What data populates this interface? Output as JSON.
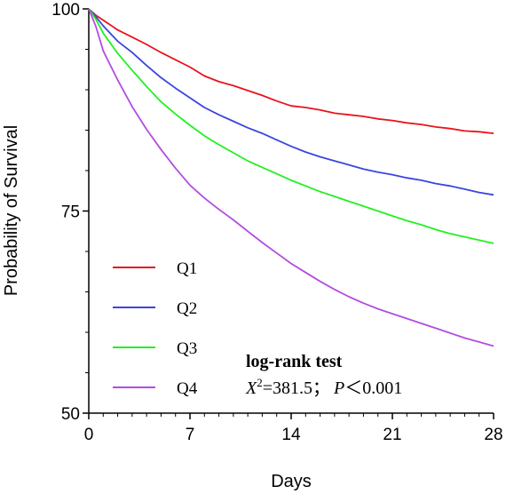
{
  "chart_data": {
    "type": "line",
    "title": "",
    "xlabel": "Days",
    "ylabel": "Probability of Survival",
    "xlim": [
      0,
      28
    ],
    "ylim": [
      50,
      100
    ],
    "xticks": [
      0,
      7,
      14,
      21,
      28
    ],
    "yticks": [
      50,
      75,
      100
    ],
    "grid": false,
    "legend_position": "bottom-left",
    "series": [
      {
        "name": "Q1",
        "color": "#e8141c",
        "x": [
          0,
          0.5,
          1,
          2,
          3,
          4,
          5,
          6,
          7,
          8,
          9,
          10,
          11,
          12,
          13,
          14,
          15,
          16,
          17,
          18,
          19,
          20,
          21,
          22,
          23,
          24,
          25,
          26,
          27,
          28
        ],
        "y": [
          100,
          99.2,
          98.6,
          97.4,
          96.5,
          95.6,
          94.6,
          93.7,
          92.8,
          91.7,
          91.0,
          90.5,
          89.9,
          89.3,
          88.6,
          88.0,
          87.8,
          87.5,
          87.1,
          86.9,
          86.7,
          86.4,
          86.2,
          85.9,
          85.7,
          85.4,
          85.2,
          84.9,
          84.8,
          84.6
        ]
      },
      {
        "name": "Q2",
        "color": "#3a45e0",
        "x": [
          0,
          0.5,
          1,
          2,
          3,
          4,
          5,
          6,
          7,
          8,
          9,
          10,
          11,
          12,
          13,
          14,
          15,
          16,
          17,
          18,
          19,
          20,
          21,
          22,
          23,
          24,
          25,
          26,
          27,
          28
        ],
        "y": [
          100,
          99.0,
          97.9,
          96.0,
          94.6,
          93.0,
          91.5,
          90.2,
          89.0,
          87.8,
          86.9,
          86.1,
          85.3,
          84.6,
          83.8,
          83.0,
          82.3,
          81.7,
          81.2,
          80.7,
          80.2,
          79.8,
          79.5,
          79.1,
          78.8,
          78.4,
          78.1,
          77.7,
          77.3,
          77.0
        ]
      },
      {
        "name": "Q3",
        "color": "#22f022",
        "x": [
          0,
          0.5,
          1,
          2,
          3,
          4,
          5,
          6,
          7,
          8,
          9,
          10,
          11,
          12,
          13,
          14,
          15,
          16,
          17,
          18,
          19,
          20,
          21,
          22,
          23,
          24,
          25,
          26,
          27,
          28
        ],
        "y": [
          100,
          98.7,
          97.0,
          94.5,
          92.4,
          90.4,
          88.5,
          87.0,
          85.6,
          84.3,
          83.2,
          82.2,
          81.2,
          80.4,
          79.6,
          78.8,
          78.1,
          77.4,
          76.8,
          76.2,
          75.6,
          75.0,
          74.4,
          73.8,
          73.3,
          72.7,
          72.2,
          71.8,
          71.4,
          71.0
        ]
      },
      {
        "name": "Q4",
        "color": "#b44ce0",
        "x": [
          0,
          0.5,
          1,
          2,
          3,
          4,
          5,
          6,
          7,
          8,
          9,
          10,
          11,
          12,
          13,
          14,
          15,
          16,
          17,
          18,
          19,
          20,
          21,
          22,
          23,
          24,
          25,
          26,
          27,
          28
        ],
        "y": [
          100,
          97.8,
          94.8,
          91.2,
          87.9,
          85.1,
          82.6,
          80.3,
          78.2,
          76.6,
          75.2,
          73.9,
          72.5,
          71.1,
          69.8,
          68.5,
          67.4,
          66.3,
          65.3,
          64.4,
          63.6,
          62.9,
          62.3,
          61.7,
          61.1,
          60.5,
          59.9,
          59.3,
          58.8,
          58.3
        ]
      }
    ],
    "annotation": {
      "heading": "log-rank test",
      "chi_symbol": "X",
      "chi_power": "2",
      "chi_rest": "=381.5；",
      "p_symbol": "P",
      "p_rest": "＜0.001"
    }
  }
}
